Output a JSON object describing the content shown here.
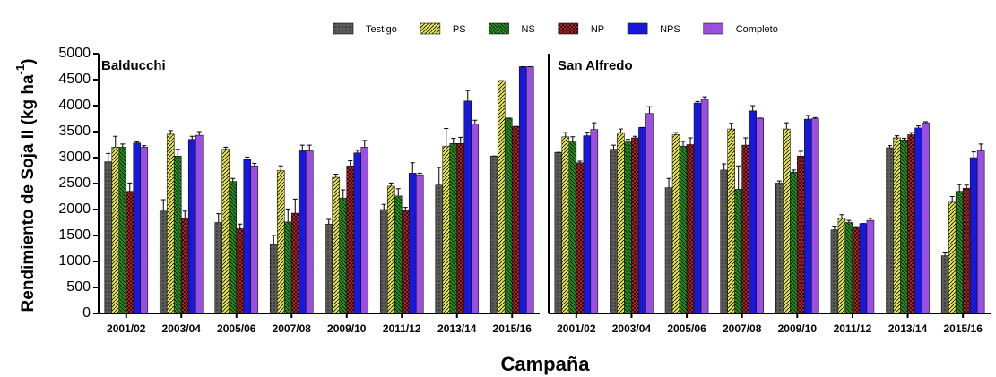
{
  "chart_data": [
    {
      "type": "bar",
      "title": "Balducchi",
      "ylabel": [
        "Rendimiento de Soja II (kg ha",
        "-1",
        ")"
      ],
      "xlabel": "Campaña",
      "categories": [
        "2001/02",
        "2003/04",
        "2005/06",
        "2007/08",
        "2009/10",
        "2011/12",
        "2013/14",
        "2015/16"
      ],
      "ylim": [
        0,
        5000
      ],
      "yticks": [
        0,
        500,
        1000,
        1500,
        2000,
        2500,
        3000,
        3500,
        4000,
        4500,
        5000
      ],
      "legend": "top",
      "series": [
        {
          "name": "Testigo",
          "color": "#5a5a5a",
          "values": [
            2920,
            1970,
            1750,
            1320,
            1720,
            2000,
            2470,
            3030
          ],
          "errors": [
            160,
            220,
            170,
            180,
            90,
            100,
            340,
            0
          ]
        },
        {
          "name": "PS",
          "color": "#e8e84a",
          "values": [
            3200,
            3450,
            3160,
            2750,
            2620,
            2450,
            3220,
            4480
          ],
          "errors": [
            210,
            70,
            40,
            90,
            60,
            60,
            340,
            0
          ]
        },
        {
          "name": "NS",
          "color": "#1f8f1f",
          "values": [
            3200,
            3030,
            2540,
            1760,
            2220,
            2260,
            3270,
            3760
          ],
          "errors": [
            60,
            130,
            60,
            250,
            160,
            140,
            100,
            0
          ]
        },
        {
          "name": "NP",
          "color": "#e02020",
          "values": [
            2350,
            1830,
            1630,
            1930,
            2840,
            1980,
            3270,
            3600
          ],
          "errors": [
            160,
            140,
            90,
            270,
            100,
            60,
            120,
            0
          ]
        },
        {
          "name": "NPS",
          "color": "#1818d8",
          "values": [
            3280,
            3350,
            2960,
            3130,
            3090,
            2700,
            4090,
            4750
          ],
          "errors": [
            20,
            60,
            50,
            110,
            50,
            200,
            200,
            0
          ]
        },
        {
          "name": "Completo",
          "color": "#9a4fe0",
          "values": [
            3200,
            3430,
            2840,
            3130,
            3200,
            2670,
            3650,
            4750
          ],
          "errors": [
            30,
            70,
            50,
            110,
            130,
            30,
            70,
            0
          ]
        }
      ]
    },
    {
      "type": "bar",
      "title": "San  Alfredo",
      "categories": [
        "2001/02",
        "2003/04",
        "2005/06",
        "2007/08",
        "2009/10",
        "2011/12",
        "2013/14",
        "2015/16"
      ],
      "ylim": [
        0,
        5000
      ],
      "series": [
        {
          "values": [
            3100,
            3160,
            2420,
            2760,
            2510,
            1610,
            3190,
            1110
          ],
          "errors": [
            0,
            80,
            180,
            120,
            40,
            70,
            40,
            70
          ]
        },
        {
          "values": [
            3400,
            3480,
            3440,
            3550,
            3550,
            1830,
            3380,
            2140
          ],
          "errors": [
            80,
            70,
            40,
            110,
            120,
            70,
            40,
            110
          ]
        },
        {
          "values": [
            3300,
            3300,
            3220,
            2390,
            2720,
            1750,
            3340,
            2350
          ],
          "errors": [
            100,
            50,
            90,
            450,
            40,
            40,
            30,
            130
          ]
        },
        {
          "values": [
            2900,
            3380,
            3250,
            3240,
            3030,
            1650,
            3440,
            2410
          ],
          "errors": [
            30,
            30,
            130,
            140,
            90,
            20,
            40,
            60
          ]
        },
        {
          "values": [
            3420,
            3580,
            4050,
            3900,
            3740,
            1730,
            3570,
            3000
          ],
          "errors": [
            70,
            0,
            30,
            100,
            70,
            0,
            40,
            110
          ]
        },
        {
          "values": [
            3540,
            3850,
            4120,
            3760,
            3750,
            1790,
            3670,
            3130
          ],
          "errors": [
            130,
            130,
            50,
            0,
            20,
            40,
            20,
            130
          ]
        }
      ]
    }
  ]
}
